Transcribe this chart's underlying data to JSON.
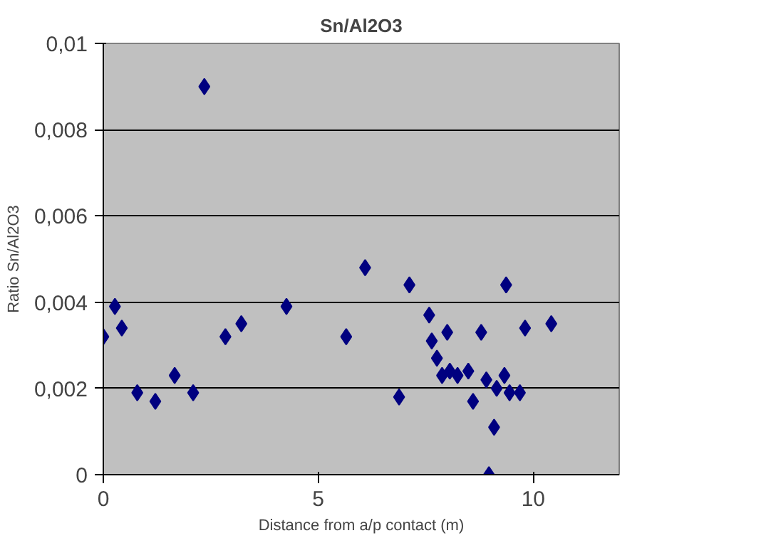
{
  "chart_data": {
    "type": "scatter",
    "title": "Sn/Al2O3",
    "xlabel": "Distance from a/p contact (m)",
    "ylabel": "Ratio Sn/Al2O3",
    "x": [
      0.0,
      0.27,
      0.43,
      0.79,
      1.21,
      1.66,
      2.09,
      2.35,
      2.84,
      3.21,
      4.26,
      5.65,
      6.09,
      6.88,
      7.12,
      7.58,
      7.64,
      7.76,
      7.88,
      8.0,
      8.06,
      8.24,
      8.49,
      8.6,
      8.79,
      8.91,
      8.97,
      9.09,
      9.15,
      9.33,
      9.37,
      9.45,
      9.69,
      9.81,
      10.42
    ],
    "values": [
      0.0032,
      0.0039,
      0.0034,
      0.0019,
      0.0017,
      0.0023,
      0.0019,
      0.009,
      0.0032,
      0.0035,
      0.0039,
      0.0032,
      0.0048,
      0.0018,
      0.0044,
      0.0037,
      0.0031,
      0.0027,
      0.0023,
      0.0033,
      0.0024,
      0.0023,
      0.0024,
      0.0017,
      0.0033,
      0.0022,
      0.0,
      0.0011,
      0.002,
      0.0023,
      0.0044,
      0.0019,
      0.0019,
      0.0034,
      0.0035
    ],
    "color": "#000080",
    "marker": "diamond",
    "xlim": [
      0,
      12
    ],
    "xticks": [
      0,
      5,
      10
    ],
    "ylim": [
      0,
      0.01
    ],
    "yticks": [
      {
        "value": 0,
        "label": "0"
      },
      {
        "value": 0.002,
        "label": "0,002"
      },
      {
        "value": 0.004,
        "label": "0,004"
      },
      {
        "value": 0.006,
        "label": "0,006"
      },
      {
        "value": 0.008,
        "label": "0,008"
      },
      {
        "value": 0.01,
        "label": "0,01"
      }
    ],
    "grid": "y"
  }
}
